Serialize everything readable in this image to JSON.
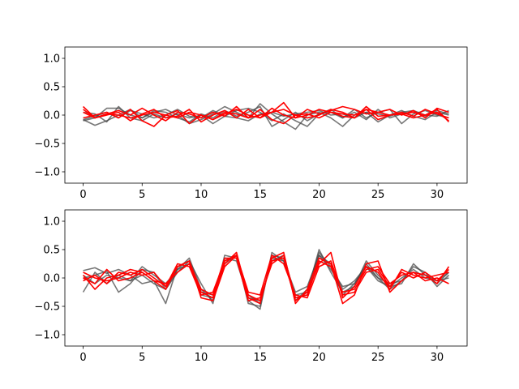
{
  "chart_data": [
    {
      "type": "line",
      "title": "",
      "xlabel": "",
      "ylabel": "",
      "xlim": [
        -1.55,
        32.55
      ],
      "ylim": [
        -1.2,
        1.2
      ],
      "xticks": [
        0,
        5,
        10,
        15,
        20,
        25,
        30
      ],
      "xtick_labels": [
        "0",
        "5",
        "10",
        "15",
        "20",
        "25",
        "30"
      ],
      "yticks": [
        -1.0,
        -0.5,
        0.0,
        0.5,
        1.0
      ],
      "ytick_labels": [
        "−1.0",
        "−0.5",
        "0.0",
        "0.5",
        "1.0"
      ],
      "grid": false,
      "legend": "none",
      "colors": {
        "grey": "#4a4a4a",
        "red": "#ff0000"
      },
      "series_x": [
        0,
        1,
        2,
        3,
        4,
        5,
        6,
        7,
        8,
        9,
        10,
        11,
        12,
        13,
        14,
        15,
        16,
        17,
        18,
        19,
        20,
        21,
        22,
        23,
        24,
        25,
        26,
        27,
        28,
        29,
        30,
        31
      ],
      "series": [
        {
          "color": "grey",
          "values": [
            -0.08,
            -0.18,
            -0.1,
            0.0,
            0.1,
            -0.05,
            0.08,
            0.05,
            -0.05,
            -0.12,
            0.02,
            -0.05,
            0.08,
            -0.02,
            0.05,
            0.15,
            -0.2,
            -0.08,
            0.05,
            -0.1,
            0.02,
            0.1,
            -0.05,
            0.05,
            -0.08,
            0.1,
            -0.05,
            0.02,
            0.05,
            -0.02,
            0.08,
            0.02
          ]
        },
        {
          "color": "grey",
          "values": [
            -0.1,
            -0.05,
            0.12,
            0.12,
            0.0,
            -0.05,
            0.05,
            0.1,
            0.0,
            -0.15,
            -0.08,
            0.02,
            0.15,
            0.05,
            -0.05,
            0.2,
            0.02,
            -0.12,
            -0.25,
            0.0,
            0.05,
            -0.05,
            -0.2,
            0.0,
            0.05,
            -0.12,
            0.0,
            0.08,
            -0.02,
            -0.08,
            0.05,
            0.0
          ]
        },
        {
          "color": "grey",
          "values": [
            0.05,
            0.02,
            -0.12,
            0.15,
            -0.05,
            -0.1,
            0.02,
            -0.05,
            0.02,
            -0.05,
            0.0,
            -0.15,
            -0.02,
            0.08,
            0.12,
            0.05,
            -0.1,
            0.02,
            -0.1,
            -0.2,
            0.02,
            0.05,
            -0.05,
            0.1,
            -0.05,
            0.05,
            0.1,
            -0.15,
            0.02,
            0.08,
            0.0,
            -0.05
          ]
        },
        {
          "color": "grey",
          "values": [
            -0.08,
            -0.02,
            0.05,
            -0.05,
            0.08,
            0.02,
            -0.05,
            0.0,
            0.1,
            -0.02,
            -0.05,
            0.08,
            -0.02,
            -0.05,
            -0.1,
            0.02,
            0.05,
            -0.02,
            0.02,
            0.05,
            0.08,
            0.0,
            0.02,
            -0.05,
            0.05,
            0.02,
            -0.02,
            0.05,
            0.08,
            0.0,
            -0.02,
            0.08
          ]
        },
        {
          "color": "red",
          "values": [
            0.15,
            -0.05,
            0.02,
            0.08,
            0.0,
            0.12,
            0.0,
            -0.1,
            0.05,
            0.02,
            -0.05,
            0.05,
            -0.02,
            0.15,
            -0.05,
            0.0,
            0.05,
            0.22,
            -0.05,
            0.0,
            0.1,
            0.05,
            -0.02,
            -0.05,
            0.15,
            -0.02,
            0.0,
            0.05,
            -0.02,
            0.1,
            0.02,
            -0.05
          ]
        },
        {
          "color": "red",
          "values": [
            0.1,
            -0.05,
            0.0,
            0.05,
            -0.1,
            0.02,
            0.1,
            -0.05,
            -0.02,
            0.1,
            -0.12,
            0.0,
            0.08,
            -0.05,
            0.1,
            -0.05,
            0.12,
            0.0,
            -0.05,
            0.1,
            0.02,
            0.08,
            0.15,
            0.1,
            0.02,
            0.05,
            0.1,
            0.0,
            0.08,
            -0.05,
            0.12,
            0.05
          ]
        },
        {
          "color": "red",
          "values": [
            -0.05,
            0.0,
            0.05,
            -0.05,
            0.1,
            -0.1,
            -0.2,
            0.0,
            0.08,
            -0.15,
            0.0,
            -0.08,
            0.05,
            0.02,
            -0.05,
            0.1,
            -0.08,
            -0.15,
            0.0,
            0.02,
            -0.05,
            0.05,
            0.02,
            0.0,
            0.1,
            -0.08,
            0.0,
            0.02,
            -0.05,
            0.0,
            0.1,
            -0.12
          ]
        },
        {
          "color": "red",
          "values": [
            0.05,
            -0.05,
            0.02,
            0.0,
            -0.05,
            0.0,
            0.05,
            0.0,
            -0.05,
            0.05,
            0.0,
            -0.08,
            0.02,
            0.1,
            0.0,
            -0.05,
            0.05,
            0.1,
            0.0,
            -0.05,
            0.0,
            0.1,
            0.05,
            -0.05,
            0.1,
            0.05,
            0.0,
            0.02,
            0.05,
            0.0,
            0.05,
            -0.1
          ]
        }
      ]
    },
    {
      "type": "line",
      "title": "",
      "xlabel": "",
      "ylabel": "",
      "xlim": [
        -1.55,
        32.55
      ],
      "ylim": [
        -1.2,
        1.2
      ],
      "xticks": [
        0,
        5,
        10,
        15,
        20,
        25,
        30
      ],
      "xtick_labels": [
        "0",
        "5",
        "10",
        "15",
        "20",
        "25",
        "30"
      ],
      "yticks": [
        -1.0,
        -0.5,
        0.0,
        0.5,
        1.0
      ],
      "ytick_labels": [
        "−1.0",
        "−0.5",
        "0.0",
        "0.5",
        "1.0"
      ],
      "grid": false,
      "legend": "none",
      "colors": {
        "grey": "#4a4a4a",
        "red": "#ff0000"
      },
      "series_x": [
        0,
        1,
        2,
        3,
        4,
        5,
        6,
        7,
        8,
        9,
        10,
        11,
        12,
        13,
        14,
        15,
        16,
        17,
        18,
        19,
        20,
        21,
        22,
        23,
        24,
        25,
        26,
        27,
        28,
        29,
        30,
        31
      ],
      "series": [
        {
          "color": "grey",
          "values": [
            0.13,
            0.18,
            0.08,
            0.15,
            0.05,
            -0.1,
            -0.05,
            -0.45,
            0.2,
            0.3,
            -0.1,
            -0.45,
            0.4,
            0.35,
            -0.4,
            -0.55,
            0.45,
            0.3,
            -0.3,
            -0.25,
            0.5,
            0.1,
            -0.25,
            -0.15,
            0.3,
            0.05,
            -0.15,
            -0.1,
            0.25,
            0.05,
            -0.1,
            0.1
          ]
        },
        {
          "color": "grey",
          "values": [
            -0.25,
            0.1,
            -0.1,
            0.05,
            -0.05,
            0.2,
            0.05,
            -0.1,
            0.15,
            0.35,
            -0.2,
            -0.4,
            0.3,
            0.4,
            -0.45,
            -0.5,
            0.4,
            0.35,
            -0.4,
            -0.2,
            0.45,
            0.2,
            -0.3,
            -0.1,
            0.25,
            0.0,
            -0.2,
            -0.05,
            0.2,
            0.1,
            -0.15,
            0.05
          ]
        },
        {
          "color": "grey",
          "values": [
            0.0,
            0.05,
            0.12,
            -0.25,
            -0.1,
            0.15,
            0.1,
            -0.2,
            0.1,
            0.3,
            -0.3,
            -0.35,
            0.35,
            0.3,
            -0.35,
            -0.4,
            0.3,
            0.4,
            -0.35,
            -0.3,
            0.4,
            0.25,
            -0.2,
            -0.05,
            0.2,
            -0.05,
            -0.15,
            0.0,
            0.15,
            0.0,
            -0.05,
            0.0
          ]
        },
        {
          "color": "grey",
          "values": [
            0.05,
            -0.1,
            0.05,
            0.0,
            -0.05,
            0.05,
            -0.1,
            -0.2,
            0.15,
            0.25,
            -0.25,
            -0.3,
            0.25,
            0.4,
            -0.3,
            -0.45,
            0.35,
            0.3,
            -0.25,
            -0.15,
            0.4,
            0.15,
            -0.15,
            -0.1,
            0.2,
            0.0,
            -0.1,
            -0.05,
            0.1,
            0.05,
            -0.05,
            0.1
          ]
        },
        {
          "color": "red",
          "values": [
            0.05,
            -0.2,
            0.0,
            0.05,
            0.15,
            0.1,
            -0.05,
            -0.2,
            0.2,
            0.3,
            -0.25,
            -0.35,
            0.25,
            0.45,
            -0.35,
            -0.45,
            0.35,
            0.45,
            -0.45,
            -0.2,
            0.35,
            0.25,
            -0.45,
            -0.3,
            0.25,
            0.3,
            -0.25,
            -0.05,
            0.1,
            0.05,
            -0.1,
            0.2
          ]
        },
        {
          "color": "red",
          "values": [
            -0.05,
            0.05,
            -0.1,
            0.1,
            0.05,
            0.15,
            0.0,
            -0.15,
            0.25,
            0.2,
            -0.3,
            -0.25,
            0.3,
            0.4,
            -0.3,
            -0.4,
            0.3,
            0.35,
            -0.4,
            -0.25,
            0.25,
            0.45,
            -0.35,
            -0.15,
            0.2,
            0.1,
            -0.2,
            0.15,
            0.05,
            0.0,
            0.05,
            0.1
          ]
        },
        {
          "color": "red",
          "values": [
            0.0,
            -0.1,
            0.15,
            -0.05,
            0.0,
            0.1,
            -0.05,
            -0.1,
            0.1,
            0.25,
            -0.2,
            -0.3,
            0.35,
            0.35,
            -0.4,
            -0.35,
            0.25,
            0.4,
            -0.35,
            -0.3,
            0.3,
            0.2,
            -0.25,
            -0.2,
            0.15,
            0.2,
            -0.1,
            0.05,
            0.1,
            -0.05,
            0.0,
            -0.1
          ]
        },
        {
          "color": "red",
          "values": [
            0.1,
            0.0,
            -0.05,
            0.0,
            0.1,
            0.05,
            0.1,
            -0.15,
            0.2,
            0.3,
            -0.35,
            -0.4,
            0.2,
            0.4,
            -0.25,
            -0.3,
            0.4,
            0.25,
            -0.3,
            -0.35,
            0.2,
            0.3,
            -0.3,
            -0.25,
            0.1,
            0.15,
            -0.15,
            0.1,
            0.0,
            0.1,
            -0.05,
            0.15
          ]
        }
      ]
    }
  ]
}
